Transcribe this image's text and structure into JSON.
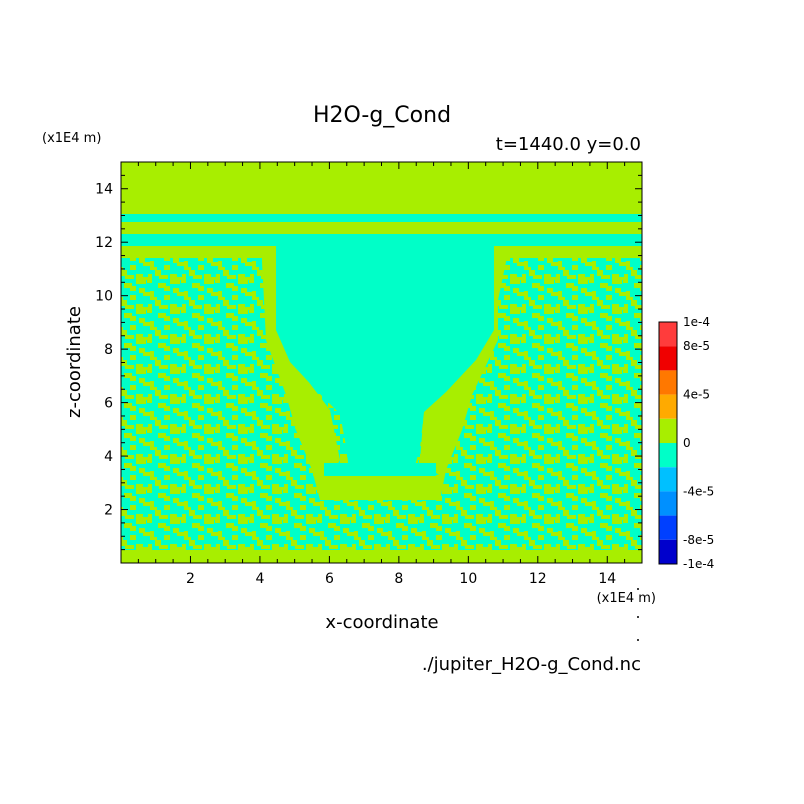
{
  "chart_data": {
    "type": "heatmap",
    "title": "H2O-g_Cond",
    "subtitle": "t=1440.0 y=0.0",
    "xlabel": "x-coordinate",
    "ylabel": "z-coordinate",
    "x_unit": "(x1E4 m)",
    "z_unit": "(x1E4 m)",
    "xlim": [
      0,
      15
    ],
    "ylim": [
      0,
      15
    ],
    "x_ticks": [
      "2",
      "4",
      "6",
      "8",
      "10",
      "12",
      "14"
    ],
    "y_ticks": [
      "2",
      "4",
      "6",
      "8",
      "10",
      "12",
      "14"
    ],
    "colorbar": {
      "labels": [
        "1e-4",
        "8e-5",
        "4e-5",
        "0",
        "-4e-5",
        "-8e-5",
        "-1e-4"
      ],
      "levels": [
        0.0001,
        8e-05,
        6e-05,
        4e-05,
        2e-05,
        0,
        -2e-05,
        -4e-05,
        -6e-05,
        -8e-05,
        -0.0001
      ],
      "colors": [
        "#ff3c3c",
        "#f00000",
        "#ff7800",
        "#ffaa00",
        "#a8ee00",
        "#00ffc8",
        "#00c0ff",
        "#0090ff",
        "#0040ff",
        "#0000cc"
      ]
    },
    "regions": [
      {
        "value": 0,
        "description": "upper band z from 12.9 to 15"
      },
      {
        "value": -2e-05,
        "description": "thin band z 12.6 to 12.9"
      },
      {
        "value": -2e-05,
        "description": "funnel-shaped central region and band z 11.9 to 12.3"
      },
      {
        "value": "mixed 0 / -2e-5",
        "description": "speckled lower regions z 0.2 to 11.5"
      }
    ],
    "colors": {
      "positive_small": "#a8ee00",
      "negative_small": "#00ffc8"
    }
  },
  "source_file": "./jupiter_H2O-g_Cond.nc"
}
